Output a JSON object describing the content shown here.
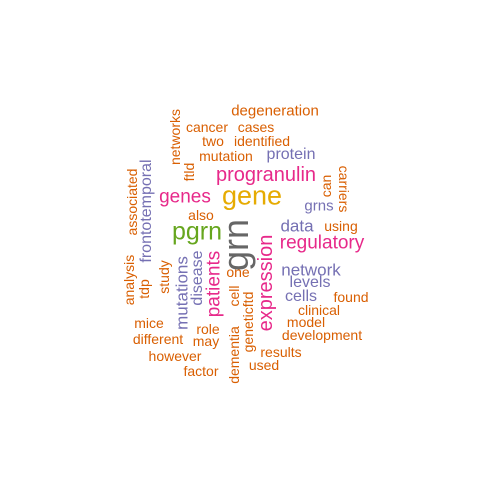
{
  "colors": {
    "orange": "#d95f02",
    "purple": "#7570b3",
    "magenta": "#e7298a",
    "green": "#66a61e",
    "gold": "#e6ab02",
    "gray": "#666666"
  },
  "words": [
    {
      "text": "degeneration",
      "color": "orange"
    },
    {
      "text": "cancer",
      "color": "orange"
    },
    {
      "text": "cases",
      "color": "orange"
    },
    {
      "text": "two",
      "color": "orange"
    },
    {
      "text": "identified",
      "color": "orange"
    },
    {
      "text": "networks",
      "color": "orange"
    },
    {
      "text": "mutation",
      "color": "orange"
    },
    {
      "text": "protein",
      "color": "purple"
    },
    {
      "text": "ftld",
      "color": "orange"
    },
    {
      "text": "frontotemporal",
      "color": "purple"
    },
    {
      "text": "progranulin",
      "color": "magenta"
    },
    {
      "text": "associated",
      "color": "orange"
    },
    {
      "text": "can",
      "color": "orange"
    },
    {
      "text": "carriers",
      "color": "orange"
    },
    {
      "text": "genes",
      "color": "magenta"
    },
    {
      "text": "gene",
      "color": "gold"
    },
    {
      "text": "grns",
      "color": "purple"
    },
    {
      "text": "also",
      "color": "orange"
    },
    {
      "text": "data",
      "color": "purple"
    },
    {
      "text": "using",
      "color": "orange"
    },
    {
      "text": "pgrn",
      "color": "green"
    },
    {
      "text": "grn",
      "color": "gray"
    },
    {
      "text": "regulatory",
      "color": "magenta"
    },
    {
      "text": "expression",
      "color": "magenta"
    },
    {
      "text": "analysis",
      "color": "orange"
    },
    {
      "text": "study",
      "color": "orange"
    },
    {
      "text": "disease",
      "color": "purple"
    },
    {
      "text": "one",
      "color": "orange"
    },
    {
      "text": "network",
      "color": "purple"
    },
    {
      "text": "tdp",
      "color": "orange"
    },
    {
      "text": "mutations",
      "color": "purple"
    },
    {
      "text": "patients",
      "color": "magenta"
    },
    {
      "text": "cell",
      "color": "orange"
    },
    {
      "text": "levels",
      "color": "purple"
    },
    {
      "text": "cells",
      "color": "purple"
    },
    {
      "text": "found",
      "color": "orange"
    },
    {
      "text": "clinical",
      "color": "orange"
    },
    {
      "text": "geneticftd",
      "color": "orange"
    },
    {
      "text": "mice",
      "color": "orange"
    },
    {
      "text": "role",
      "color": "orange"
    },
    {
      "text": "model",
      "color": "orange"
    },
    {
      "text": "different",
      "color": "orange"
    },
    {
      "text": "may",
      "color": "orange"
    },
    {
      "text": "development",
      "color": "orange"
    },
    {
      "text": "however",
      "color": "orange"
    },
    {
      "text": "results",
      "color": "orange"
    },
    {
      "text": "dementia",
      "color": "orange"
    },
    {
      "text": "used",
      "color": "orange"
    },
    {
      "text": "factor",
      "color": "orange"
    }
  ]
}
